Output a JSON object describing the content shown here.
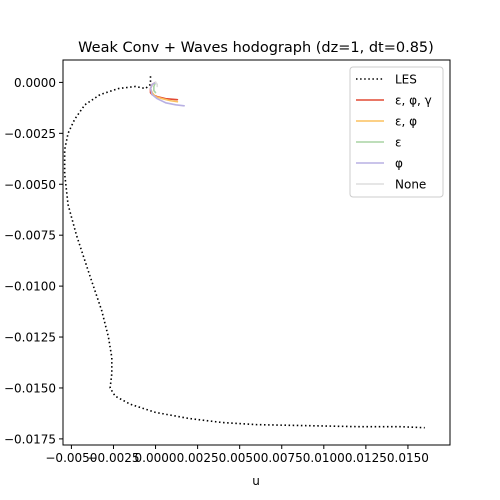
{
  "chart_data": {
    "type": "line",
    "title": "Weak Conv + Waves hodograph (dz=1, dt=0.85)",
    "xlabel": "u",
    "ylabel": "",
    "xlim": [
      -0.0055,
      0.0175
    ],
    "ylim": [
      -0.0178,
      0.0011
    ],
    "grid": false,
    "legend_position": "top-right",
    "x_ticks": [
      -0.005,
      -0.0025,
      0.0,
      0.0025,
      0.005,
      0.0075,
      0.01,
      0.0125,
      0.015
    ],
    "x_tick_labels": [
      "−0.0050",
      "−0.0025",
      "0.0000",
      "0.0025",
      "0.0050",
      "0.0075",
      "0.0100",
      "0.0125",
      "0.0150"
    ],
    "y_ticks": [
      0.0,
      -0.0025,
      -0.005,
      -0.0075,
      -0.01,
      -0.0125,
      -0.015,
      -0.0175
    ],
    "y_tick_labels": [
      "0.0000",
      "−0.0025",
      "−0.0050",
      "−0.0075",
      "−0.0100",
      "−0.0125",
      "−0.0150",
      "−0.0175"
    ],
    "series": [
      {
        "name": "LES",
        "color": "#000000",
        "style": "dotted",
        "x": [
          -0.0003,
          -0.0003,
          -0.0006,
          -0.0012,
          -0.0022,
          -0.0033,
          -0.0042,
          -0.0048,
          -0.0052,
          -0.0054,
          -0.0054,
          -0.0052,
          -0.0047,
          -0.0039,
          -0.0032,
          -0.0028,
          -0.0026,
          -0.0026,
          -0.0027,
          -0.0024,
          -0.0015,
          0.0,
          0.002,
          0.004,
          0.006,
          0.009,
          0.012,
          0.0145,
          0.016
        ],
        "y": [
          0.0003,
          -0.0001,
          -0.0003,
          -0.0002,
          -0.0003,
          -0.0006,
          -0.0011,
          -0.0018,
          -0.0025,
          -0.0033,
          -0.0045,
          -0.006,
          -0.0075,
          -0.0095,
          -0.0112,
          -0.0125,
          -0.0135,
          -0.0143,
          -0.015,
          -0.0154,
          -0.0158,
          -0.0162,
          -0.0165,
          -0.0167,
          -0.0168,
          -0.01685,
          -0.0169,
          -0.0169,
          -0.01695
        ]
      },
      {
        "name": "ε, φ, γ",
        "color": "#e24a33",
        "style": "solid",
        "x": [
          0.0,
          -0.0002,
          -0.0003,
          -0.0003,
          -0.0002,
          0.0001,
          0.0006,
          0.0013
        ],
        "y": [
          0.0,
          -0.0001,
          -0.0003,
          -0.0005,
          -0.0006,
          -0.0007,
          -0.0008,
          -0.00085
        ]
      },
      {
        "name": "ε, φ",
        "color": "#fbc15e",
        "style": "solid",
        "x": [
          0.0,
          -0.0002,
          -0.0003,
          -0.0002,
          0.0,
          0.0004,
          0.0009,
          0.0013
        ],
        "y": [
          0.0,
          -0.0001,
          -0.0003,
          -0.0005,
          -0.0007,
          -0.0008,
          -0.0009,
          -0.00095
        ]
      },
      {
        "name": "ε",
        "color": "#a9d3a4",
        "style": "solid",
        "x": [
          0.0,
          -0.0001,
          -0.0001,
          0.0
        ],
        "y": [
          0.0,
          -0.0002,
          -0.0004,
          -0.0005
        ]
      },
      {
        "name": "φ",
        "color": "#b8b0e3",
        "style": "solid",
        "x": [
          0.0,
          -0.0002,
          -0.0003,
          -0.0002,
          0.0001,
          0.0006,
          0.0012,
          0.0017
        ],
        "y": [
          0.0,
          -0.0001,
          -0.0003,
          -0.0006,
          -0.0008,
          -0.001,
          -0.0011,
          -0.00115
        ]
      },
      {
        "name": "None",
        "color": "#dddddd",
        "style": "solid",
        "x": [
          0.0,
          0.0001,
          0.0001
        ],
        "y": [
          0.0,
          -0.0001,
          -0.0002
        ]
      }
    ]
  }
}
